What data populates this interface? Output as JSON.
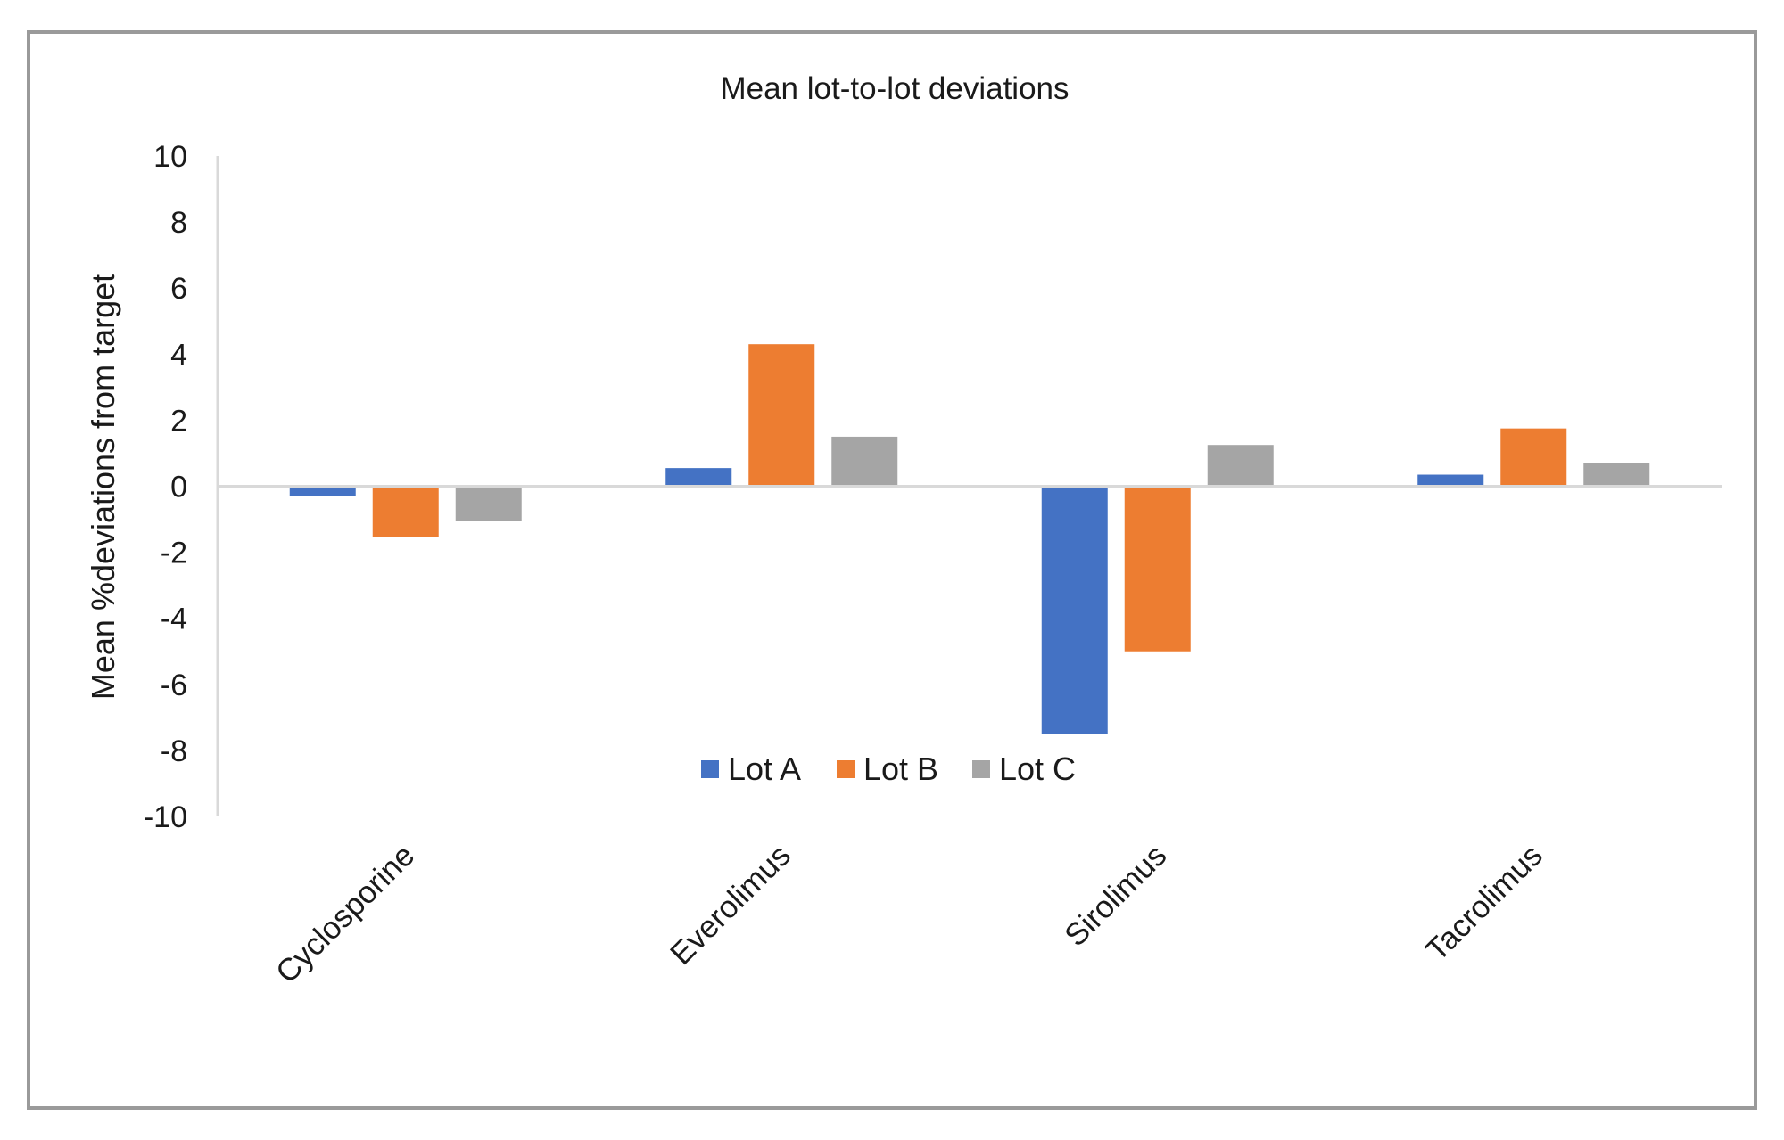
{
  "chart_data": {
    "type": "bar",
    "title": "Mean lot-to-lot deviations",
    "xlabel": "",
    "ylabel": "Mean %deviations from target",
    "categories": [
      "Cyclosporine",
      "Everolimus",
      "Sirolimus",
      "Tacrolimus"
    ],
    "series": [
      {
        "name": "Lot A",
        "color": "#4472C4",
        "values": [
          -0.3,
          0.55,
          -7.5,
          0.35
        ]
      },
      {
        "name": "Lot B",
        "color": "#ED7D31",
        "values": [
          -1.55,
          4.3,
          -5.0,
          1.75
        ]
      },
      {
        "name": "Lot C",
        "color": "#A5A5A5",
        "values": [
          -1.05,
          1.5,
          1.25,
          0.7
        ]
      }
    ],
    "ylim": [
      -10,
      10
    ],
    "yticks": [
      "10",
      "8",
      "6",
      "4",
      "2",
      "0",
      "-2",
      "-4",
      "-6",
      "-8",
      "-10"
    ],
    "grid": false,
    "legend": {
      "position": "bottom-center-inside",
      "entries": [
        "Lot A",
        "Lot B",
        "Lot C"
      ]
    }
  }
}
